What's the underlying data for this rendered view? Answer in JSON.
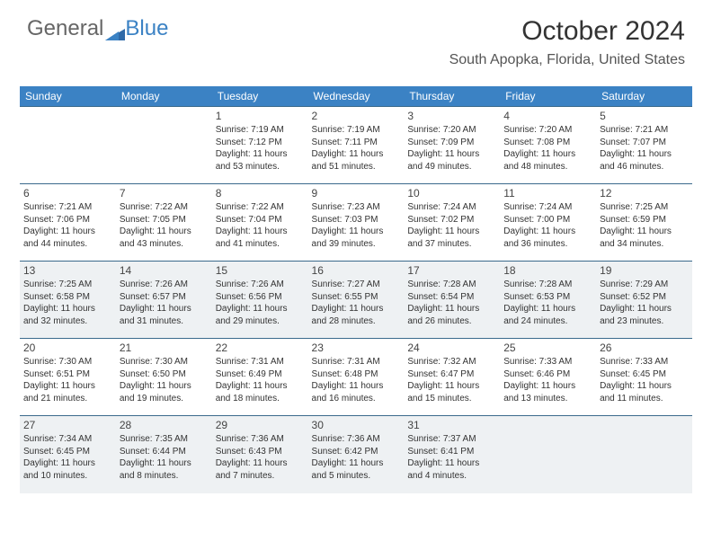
{
  "logo": {
    "part1": "General",
    "part2": "Blue"
  },
  "title": "October 2024",
  "location": "South Apopka, Florida, United States",
  "colors": {
    "header_bg": "#3b82c4",
    "header_text": "#ffffff",
    "border": "#3b6a8c",
    "shaded_bg": "#eef1f3",
    "text": "#333333"
  },
  "day_headers": [
    "Sunday",
    "Monday",
    "Tuesday",
    "Wednesday",
    "Thursday",
    "Friday",
    "Saturday"
  ],
  "weeks": [
    {
      "shaded": false,
      "cells": [
        {
          "blank": true
        },
        {
          "blank": true
        },
        {
          "day": "1",
          "sunrise": "Sunrise: 7:19 AM",
          "sunset": "Sunset: 7:12 PM",
          "daylight1": "Daylight: 11 hours",
          "daylight2": "and 53 minutes."
        },
        {
          "day": "2",
          "sunrise": "Sunrise: 7:19 AM",
          "sunset": "Sunset: 7:11 PM",
          "daylight1": "Daylight: 11 hours",
          "daylight2": "and 51 minutes."
        },
        {
          "day": "3",
          "sunrise": "Sunrise: 7:20 AM",
          "sunset": "Sunset: 7:09 PM",
          "daylight1": "Daylight: 11 hours",
          "daylight2": "and 49 minutes."
        },
        {
          "day": "4",
          "sunrise": "Sunrise: 7:20 AM",
          "sunset": "Sunset: 7:08 PM",
          "daylight1": "Daylight: 11 hours",
          "daylight2": "and 48 minutes."
        },
        {
          "day": "5",
          "sunrise": "Sunrise: 7:21 AM",
          "sunset": "Sunset: 7:07 PM",
          "daylight1": "Daylight: 11 hours",
          "daylight2": "and 46 minutes."
        }
      ]
    },
    {
      "shaded": false,
      "cells": [
        {
          "day": "6",
          "sunrise": "Sunrise: 7:21 AM",
          "sunset": "Sunset: 7:06 PM",
          "daylight1": "Daylight: 11 hours",
          "daylight2": "and 44 minutes."
        },
        {
          "day": "7",
          "sunrise": "Sunrise: 7:22 AM",
          "sunset": "Sunset: 7:05 PM",
          "daylight1": "Daylight: 11 hours",
          "daylight2": "and 43 minutes."
        },
        {
          "day": "8",
          "sunrise": "Sunrise: 7:22 AM",
          "sunset": "Sunset: 7:04 PM",
          "daylight1": "Daylight: 11 hours",
          "daylight2": "and 41 minutes."
        },
        {
          "day": "9",
          "sunrise": "Sunrise: 7:23 AM",
          "sunset": "Sunset: 7:03 PM",
          "daylight1": "Daylight: 11 hours",
          "daylight2": "and 39 minutes."
        },
        {
          "day": "10",
          "sunrise": "Sunrise: 7:24 AM",
          "sunset": "Sunset: 7:02 PM",
          "daylight1": "Daylight: 11 hours",
          "daylight2": "and 37 minutes."
        },
        {
          "day": "11",
          "sunrise": "Sunrise: 7:24 AM",
          "sunset": "Sunset: 7:00 PM",
          "daylight1": "Daylight: 11 hours",
          "daylight2": "and 36 minutes."
        },
        {
          "day": "12",
          "sunrise": "Sunrise: 7:25 AM",
          "sunset": "Sunset: 6:59 PM",
          "daylight1": "Daylight: 11 hours",
          "daylight2": "and 34 minutes."
        }
      ]
    },
    {
      "shaded": true,
      "cells": [
        {
          "day": "13",
          "sunrise": "Sunrise: 7:25 AM",
          "sunset": "Sunset: 6:58 PM",
          "daylight1": "Daylight: 11 hours",
          "daylight2": "and 32 minutes."
        },
        {
          "day": "14",
          "sunrise": "Sunrise: 7:26 AM",
          "sunset": "Sunset: 6:57 PM",
          "daylight1": "Daylight: 11 hours",
          "daylight2": "and 31 minutes."
        },
        {
          "day": "15",
          "sunrise": "Sunrise: 7:26 AM",
          "sunset": "Sunset: 6:56 PM",
          "daylight1": "Daylight: 11 hours",
          "daylight2": "and 29 minutes."
        },
        {
          "day": "16",
          "sunrise": "Sunrise: 7:27 AM",
          "sunset": "Sunset: 6:55 PM",
          "daylight1": "Daylight: 11 hours",
          "daylight2": "and 28 minutes."
        },
        {
          "day": "17",
          "sunrise": "Sunrise: 7:28 AM",
          "sunset": "Sunset: 6:54 PM",
          "daylight1": "Daylight: 11 hours",
          "daylight2": "and 26 minutes."
        },
        {
          "day": "18",
          "sunrise": "Sunrise: 7:28 AM",
          "sunset": "Sunset: 6:53 PM",
          "daylight1": "Daylight: 11 hours",
          "daylight2": "and 24 minutes."
        },
        {
          "day": "19",
          "sunrise": "Sunrise: 7:29 AM",
          "sunset": "Sunset: 6:52 PM",
          "daylight1": "Daylight: 11 hours",
          "daylight2": "and 23 minutes."
        }
      ]
    },
    {
      "shaded": false,
      "cells": [
        {
          "day": "20",
          "sunrise": "Sunrise: 7:30 AM",
          "sunset": "Sunset: 6:51 PM",
          "daylight1": "Daylight: 11 hours",
          "daylight2": "and 21 minutes."
        },
        {
          "day": "21",
          "sunrise": "Sunrise: 7:30 AM",
          "sunset": "Sunset: 6:50 PM",
          "daylight1": "Daylight: 11 hours",
          "daylight2": "and 19 minutes."
        },
        {
          "day": "22",
          "sunrise": "Sunrise: 7:31 AM",
          "sunset": "Sunset: 6:49 PM",
          "daylight1": "Daylight: 11 hours",
          "daylight2": "and 18 minutes."
        },
        {
          "day": "23",
          "sunrise": "Sunrise: 7:31 AM",
          "sunset": "Sunset: 6:48 PM",
          "daylight1": "Daylight: 11 hours",
          "daylight2": "and 16 minutes."
        },
        {
          "day": "24",
          "sunrise": "Sunrise: 7:32 AM",
          "sunset": "Sunset: 6:47 PM",
          "daylight1": "Daylight: 11 hours",
          "daylight2": "and 15 minutes."
        },
        {
          "day": "25",
          "sunrise": "Sunrise: 7:33 AM",
          "sunset": "Sunset: 6:46 PM",
          "daylight1": "Daylight: 11 hours",
          "daylight2": "and 13 minutes."
        },
        {
          "day": "26",
          "sunrise": "Sunrise: 7:33 AM",
          "sunset": "Sunset: 6:45 PM",
          "daylight1": "Daylight: 11 hours",
          "daylight2": "and 11 minutes."
        }
      ]
    },
    {
      "shaded": true,
      "cells": [
        {
          "day": "27",
          "sunrise": "Sunrise: 7:34 AM",
          "sunset": "Sunset: 6:45 PM",
          "daylight1": "Daylight: 11 hours",
          "daylight2": "and 10 minutes."
        },
        {
          "day": "28",
          "sunrise": "Sunrise: 7:35 AM",
          "sunset": "Sunset: 6:44 PM",
          "daylight1": "Daylight: 11 hours",
          "daylight2": "and 8 minutes."
        },
        {
          "day": "29",
          "sunrise": "Sunrise: 7:36 AM",
          "sunset": "Sunset: 6:43 PM",
          "daylight1": "Daylight: 11 hours",
          "daylight2": "and 7 minutes."
        },
        {
          "day": "30",
          "sunrise": "Sunrise: 7:36 AM",
          "sunset": "Sunset: 6:42 PM",
          "daylight1": "Daylight: 11 hours",
          "daylight2": "and 5 minutes."
        },
        {
          "day": "31",
          "sunrise": "Sunrise: 7:37 AM",
          "sunset": "Sunset: 6:41 PM",
          "daylight1": "Daylight: 11 hours",
          "daylight2": "and 4 minutes."
        },
        {
          "blank": true
        },
        {
          "blank": true
        }
      ]
    }
  ]
}
